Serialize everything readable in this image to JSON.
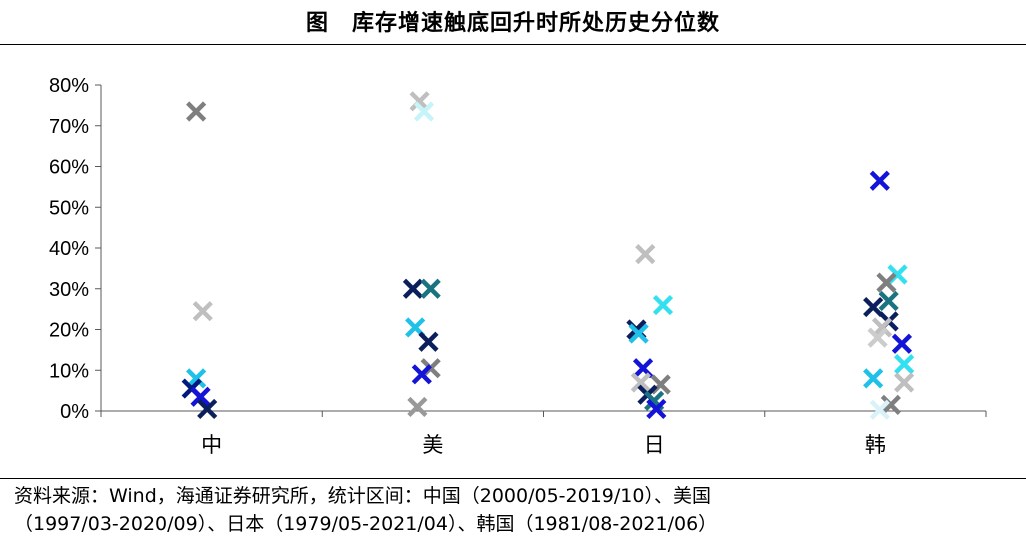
{
  "title": "图　库存增速触底回升时所处历史分位数",
  "source_line1": "资料来源：Wind，海通证券研究所，统计区间：中国（2000/05-2019/10）、美国",
  "source_line2": "（1997/03-2020/09）、日本（1979/05-2021/04）、韩国（1981/08-2021/06）",
  "chart_data": {
    "type": "scatter",
    "title": "图　库存增速触底回升时所处历史分位数",
    "xlabel": "",
    "ylabel": "",
    "ylim": [
      0,
      80
    ],
    "y_unit": "%",
    "y_ticks": [
      0,
      10,
      20,
      30,
      40,
      50,
      60,
      70,
      80
    ],
    "y_tick_labels": [
      "0%",
      "10%",
      "20%",
      "30%",
      "40%",
      "50%",
      "60%",
      "70%",
      "80%"
    ],
    "categories": [
      "中",
      "美",
      "日",
      "韩"
    ],
    "grid": false,
    "legend": "none",
    "marker": "x",
    "points": [
      {
        "category": "中",
        "offset": -0.07,
        "y": 73.5,
        "color": "#7f7f7f"
      },
      {
        "category": "中",
        "offset": -0.04,
        "y": 24.5,
        "color": "#bfbfbf"
      },
      {
        "category": "中",
        "offset": -0.07,
        "y": 8.0,
        "color": "#1fc1e8"
      },
      {
        "category": "中",
        "offset": -0.09,
        "y": 5.5,
        "color": "#001a80"
      },
      {
        "category": "中",
        "offset": -0.05,
        "y": 3.5,
        "color": "#1414d9"
      },
      {
        "category": "中",
        "offset": -0.02,
        "y": 0.5,
        "color": "#0b1f5c"
      },
      {
        "category": "美",
        "offset": -0.06,
        "y": 76.0,
        "color": "#bfbfbf"
      },
      {
        "category": "美",
        "offset": -0.04,
        "y": 73.5,
        "color": "#c6f4f8"
      },
      {
        "category": "美",
        "offset": -0.09,
        "y": 30.0,
        "color": "#0b1f5c"
      },
      {
        "category": "美",
        "offset": -0.01,
        "y": 30.0,
        "color": "#1a7380"
      },
      {
        "category": "美",
        "offset": -0.08,
        "y": 20.5,
        "color": "#1fc1e8"
      },
      {
        "category": "美",
        "offset": -0.02,
        "y": 17.0,
        "color": "#0b1f5c"
      },
      {
        "category": "美",
        "offset": -0.01,
        "y": 10.5,
        "color": "#7f7f7f"
      },
      {
        "category": "美",
        "offset": -0.05,
        "y": 9.0,
        "color": "#1414d9"
      },
      {
        "category": "美",
        "offset": -0.07,
        "y": 1.0,
        "color": "#999999"
      },
      {
        "category": "日",
        "offset": -0.04,
        "y": 38.5,
        "color": "#bfbfbf"
      },
      {
        "category": "日",
        "offset": 0.04,
        "y": 26.0,
        "color": "#33e0f0"
      },
      {
        "category": "日",
        "offset": -0.08,
        "y": 20.0,
        "color": "#0b1f5c"
      },
      {
        "category": "日",
        "offset": -0.07,
        "y": 19.0,
        "color": "#1fc1e8"
      },
      {
        "category": "日",
        "offset": -0.05,
        "y": 10.5,
        "color": "#1414d9"
      },
      {
        "category": "日",
        "offset": -0.06,
        "y": 7.0,
        "color": "#bfbfbf"
      },
      {
        "category": "日",
        "offset": 0.03,
        "y": 6.5,
        "color": "#7f7f7f"
      },
      {
        "category": "日",
        "offset": -0.03,
        "y": 4.0,
        "color": "#0b1f5c"
      },
      {
        "category": "日",
        "offset": 0.0,
        "y": 2.5,
        "color": "#1a7380"
      },
      {
        "category": "日",
        "offset": 0.01,
        "y": 0.5,
        "color": "#1414d9"
      },
      {
        "category": "韩",
        "offset": 0.02,
        "y": 56.5,
        "color": "#1414d9"
      },
      {
        "category": "韩",
        "offset": 0.1,
        "y": 33.5,
        "color": "#33e0f0"
      },
      {
        "category": "韩",
        "offset": 0.05,
        "y": 31.5,
        "color": "#7f7f7f"
      },
      {
        "category": "韩",
        "offset": 0.06,
        "y": 27.0,
        "color": "#1a7380"
      },
      {
        "category": "韩",
        "offset": -0.01,
        "y": 25.5,
        "color": "#0b1f5c"
      },
      {
        "category": "韩",
        "offset": 0.06,
        "y": 22.0,
        "color": "#0b1f5c"
      },
      {
        "category": "韩",
        "offset": 0.03,
        "y": 20.5,
        "color": "#bfbfbf"
      },
      {
        "category": "韩",
        "offset": 0.01,
        "y": 18.0,
        "color": "#cccccc"
      },
      {
        "category": "韩",
        "offset": 0.12,
        "y": 16.5,
        "color": "#1414d9"
      },
      {
        "category": "韩",
        "offset": 0.13,
        "y": 11.5,
        "color": "#33e0f0"
      },
      {
        "category": "韩",
        "offset": -0.01,
        "y": 8.0,
        "color": "#1fc1e8"
      },
      {
        "category": "韩",
        "offset": 0.13,
        "y": 7.0,
        "color": "#bfbfbf"
      },
      {
        "category": "韩",
        "offset": 0.07,
        "y": 1.5,
        "color": "#7f7f7f"
      },
      {
        "category": "韩",
        "offset": 0.02,
        "y": 0.3,
        "color": "#d9f2f7"
      }
    ]
  }
}
